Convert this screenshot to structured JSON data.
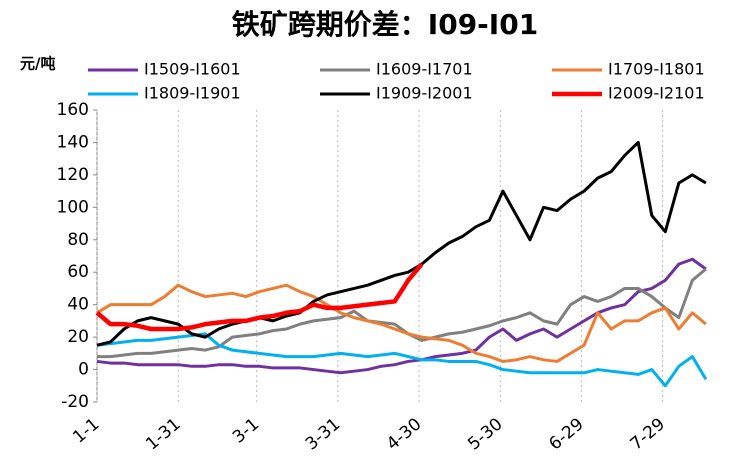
{
  "chart_data": {
    "type": "line",
    "title": "铁矿跨期价差：I09-I01",
    "y_label": "元/吨",
    "x": [
      0,
      5,
      10,
      15,
      20,
      25,
      30,
      35,
      40,
      45,
      50,
      55,
      60,
      65,
      70,
      75,
      80,
      85,
      90,
      95,
      100,
      105,
      110,
      115,
      120,
      125,
      130,
      135,
      140,
      145,
      150,
      155,
      160,
      165,
      170,
      175,
      180,
      185,
      190,
      195,
      200,
      205,
      210,
      215,
      220,
      225
    ],
    "xlim": [
      0,
      228
    ],
    "xticks": [
      {
        "value": 0,
        "label": "1-1"
      },
      {
        "value": 30,
        "label": "1-31"
      },
      {
        "value": 59,
        "label": "3-1"
      },
      {
        "value": 89,
        "label": "3-31"
      },
      {
        "value": 119,
        "label": "4-30"
      },
      {
        "value": 149,
        "label": "5-30"
      },
      {
        "value": 179,
        "label": "6-29"
      },
      {
        "value": 209,
        "label": "7-29"
      }
    ],
    "ylim": [
      -20,
      160
    ],
    "yticks": [
      -20,
      0,
      20,
      40,
      60,
      80,
      100,
      120,
      140,
      160
    ],
    "grid": "x",
    "series": [
      {
        "name": "I1509-I1601",
        "color": "#7030a0",
        "values": [
          5,
          4,
          4,
          3,
          3,
          3,
          3,
          2,
          2,
          3,
          3,
          2,
          2,
          1,
          1,
          1,
          0,
          -1,
          -2,
          -1,
          0,
          2,
          3,
          5,
          6,
          8,
          9,
          10,
          12,
          20,
          25,
          18,
          22,
          25,
          20,
          25,
          30,
          35,
          38,
          40,
          48,
          50,
          55,
          65,
          68,
          62
        ]
      },
      {
        "name": "I1609-I1701",
        "color": "#808080",
        "values": [
          8,
          8,
          9,
          10,
          10,
          11,
          12,
          13,
          12,
          14,
          20,
          21,
          22,
          24,
          25,
          28,
          30,
          31,
          32,
          36,
          30,
          29,
          28,
          22,
          18,
          20,
          22,
          23,
          25,
          27,
          30,
          32,
          35,
          30,
          28,
          40,
          45,
          42,
          45,
          50,
          50,
          45,
          38,
          32,
          55,
          62
        ]
      },
      {
        "name": "I1709-I1801",
        "color": "#ed7d31",
        "values": [
          35,
          40,
          40,
          40,
          40,
          45,
          52,
          48,
          45,
          46,
          47,
          45,
          48,
          50,
          52,
          48,
          45,
          40,
          35,
          32,
          30,
          28,
          25,
          22,
          20,
          19,
          18,
          15,
          10,
          8,
          5,
          6,
          8,
          6,
          5,
          10,
          15,
          35,
          25,
          30,
          30,
          35,
          38,
          25,
          35,
          28
        ]
      },
      {
        "name": "I1809-I1901",
        "color": "#00b0f0",
        "values": [
          15,
          16,
          17,
          18,
          18,
          19,
          20,
          21,
          22,
          15,
          12,
          11,
          10,
          9,
          8,
          8,
          8,
          9,
          10,
          9,
          8,
          9,
          10,
          8,
          6,
          6,
          5,
          5,
          5,
          3,
          0,
          -1,
          -2,
          -2,
          -2,
          -2,
          -2,
          0,
          -1,
          -2,
          -3,
          0,
          -10,
          2,
          8,
          -6
        ]
      },
      {
        "name": "I1909-I2001",
        "color": "#000000",
        "values": [
          15,
          17,
          25,
          30,
          32,
          30,
          28,
          22,
          20,
          25,
          28,
          30,
          32,
          30,
          33,
          35,
          42,
          46,
          48,
          50,
          52,
          55,
          58,
          60,
          65,
          72,
          78,
          82,
          88,
          92,
          110,
          95,
          80,
          100,
          98,
          105,
          110,
          118,
          122,
          132,
          140,
          95,
          85,
          115,
          120,
          115
        ]
      },
      {
        "name": "I2009-I2101",
        "color": "#ff0000",
        "values": [
          35,
          28,
          28,
          27,
          25,
          25,
          25,
          26,
          28,
          29,
          30,
          30,
          32,
          33,
          35,
          36,
          40,
          38,
          38,
          39,
          40,
          41,
          42,
          55,
          65,
          null,
          null,
          null,
          null,
          null,
          null,
          null,
          null,
          null,
          null,
          null,
          null,
          null,
          null,
          null,
          null,
          null,
          null,
          null,
          null,
          null
        ]
      }
    ]
  }
}
